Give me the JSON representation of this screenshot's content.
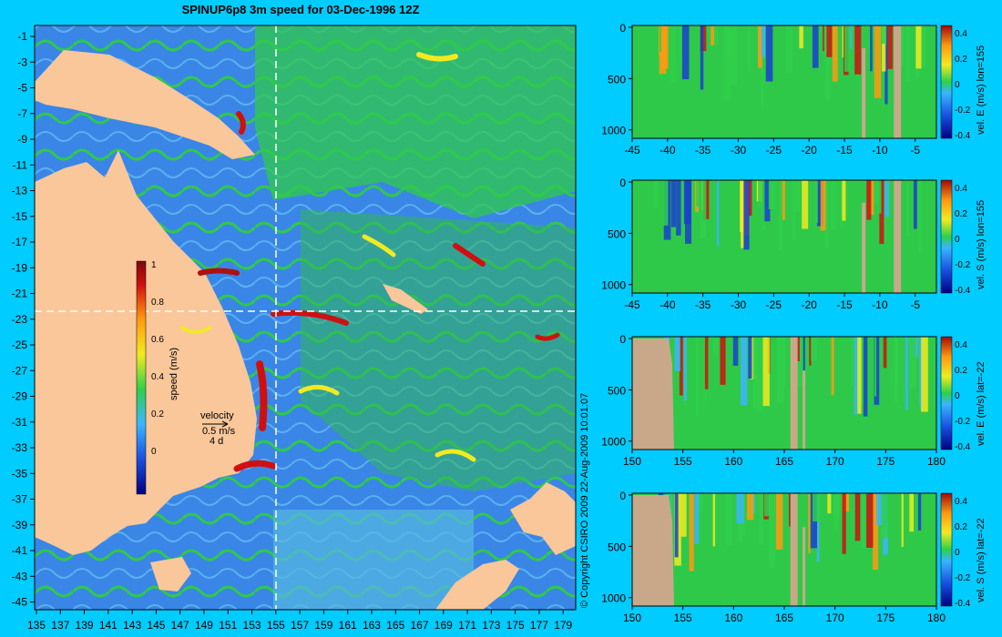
{
  "title": "SPINUP6p8 3m speed for 03-Dec-1996 12Z",
  "copyright": "© Copyright CSIRO 2009   22-Aug-2009 10:01:07",
  "map": {
    "lon_ticks": [
      "135",
      "137",
      "139",
      "141",
      "143",
      "145",
      "147",
      "149",
      "151",
      "153",
      "155",
      "157",
      "159",
      "161",
      "163",
      "165",
      "167",
      "169",
      "171",
      "173",
      "175",
      "177",
      "179"
    ],
    "lat_ticks": [
      "-1",
      "-3",
      "-5",
      "-7",
      "-9",
      "-11",
      "-13",
      "-15",
      "-17",
      "-19",
      "-21",
      "-23",
      "-25",
      "-27",
      "-29",
      "-31",
      "-33",
      "-35",
      "-37",
      "-39",
      "-41",
      "-43",
      "-45"
    ],
    "colors": {
      "land": "#f9c79a",
      "ocean_low": "#2f6fe0",
      "ocean_mid": "#2fc94a",
      "ocean_high": "#d01010",
      "section_line": "#ffffff"
    },
    "section_lon": 155,
    "section_lat": -22,
    "colorbar": {
      "label": "speed (m/s)",
      "ticks": [
        "1",
        "0.8",
        "0.6",
        "0.4",
        "0.2",
        "0"
      ]
    },
    "velocity_key": {
      "title": "velocity",
      "speed": "0.5 m/s",
      "duration": "4 d"
    }
  },
  "panels": [
    {
      "label": "vel. E (m/s) lon=155",
      "x_ticks": [
        "-45",
        "-40",
        "-35",
        "-30",
        "-25",
        "-20",
        "-15",
        "-10",
        "-5"
      ],
      "y_ticks": [
        "0",
        "500",
        "1000"
      ],
      "cb_ticks": [
        "0.4",
        "0.2",
        "0",
        "-0.2",
        "-0.4"
      ]
    },
    {
      "label": "vel. S (m/s) lon=155",
      "x_ticks": [
        "-45",
        "-40",
        "-35",
        "-30",
        "-25",
        "-20",
        "-15",
        "-10",
        "-5"
      ],
      "y_ticks": [
        "0",
        "500",
        "1000"
      ],
      "cb_ticks": [
        "0.4",
        "0.2",
        "0",
        "-0.2",
        "-0.4"
      ]
    },
    {
      "label": "vel. E (m/s) lat=-22",
      "x_ticks": [
        "150",
        "155",
        "160",
        "165",
        "170",
        "175",
        "180"
      ],
      "y_ticks": [
        "0",
        "500",
        "1000"
      ],
      "cb_ticks": [
        "0.4",
        "0.2",
        "0",
        "-0.2",
        "-0.4"
      ]
    },
    {
      "label": "vel. S (m/s) lat=-22",
      "x_ticks": [
        "150",
        "155",
        "160",
        "165",
        "170",
        "175",
        "180"
      ],
      "y_ticks": [
        "0",
        "500",
        "1000"
      ],
      "cb_ticks": [
        "0.4",
        "0.2",
        "0",
        "-0.2",
        "-0.4"
      ]
    }
  ]
}
